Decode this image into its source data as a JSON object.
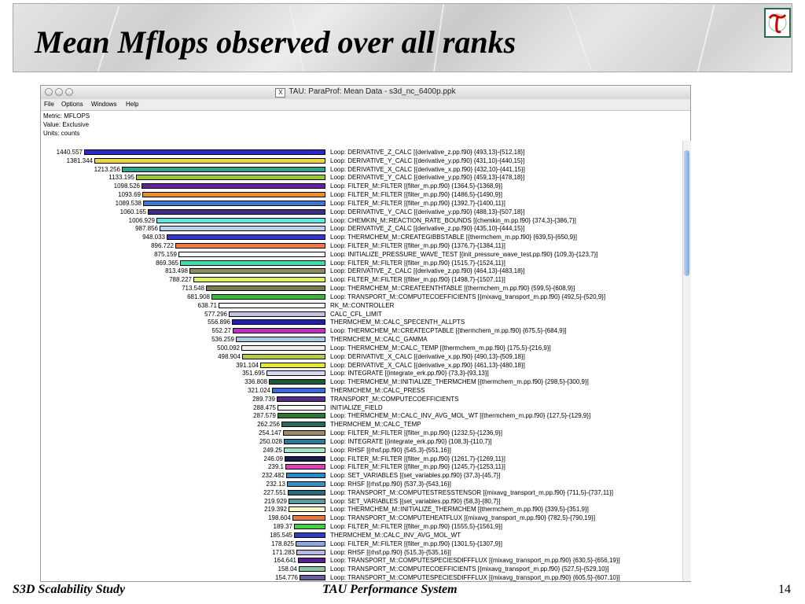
{
  "slide": {
    "title": "Mean Mflops observed over all ranks",
    "footer_left": "S3D Scalability Study",
    "footer_center": "TAU Performance System",
    "page_number": "14"
  },
  "colors": {
    "title": "#000000",
    "logo_accent": "#cc0000",
    "logo_border": "#2c6a45"
  },
  "window": {
    "title": "TAU: ParaProf: Mean Data - s3d_nc_6400p.ppk",
    "menu": [
      "File",
      "Options",
      "Windows",
      "Help"
    ],
    "meta": {
      "metric": "Metric: MFLOPS",
      "value": "Value: Exclusive",
      "units": "Units: counts"
    }
  },
  "chart_data": {
    "type": "bar",
    "orientation": "horizontal",
    "max_value": 1440.557,
    "rows": [
      {
        "value": 1440.557,
        "label": "Loop: DERIVATIVE_Z_CALC [{derivative_z.pp.f90} {493,13}-{512,18}]",
        "color": "#2b27c8"
      },
      {
        "value": 1381.344,
        "label": "Loop: DERIVATIVE_Y_CALC [{derivative_y.pp.f90} {431,10}-{440,15}]",
        "color": "#f0d63c"
      },
      {
        "value": 1213.256,
        "label": "Loop: DERIVATIVE_X_CALC [{derivative_x.pp.f90} {432,10}-{441,15}]",
        "color": "#35a08a"
      },
      {
        "value": 1133.195,
        "label": "Loop: DERIVATIVE_Y_CALC [{derivative_y.pp.f90} {459,13}-{478,18}]",
        "color": "#9ec536"
      },
      {
        "value": 1098.526,
        "label": "Loop: FILTER_M::FILTER [{filter_m.pp.f90} {1364,5}-{1368,9}]",
        "color": "#6a1e9a"
      },
      {
        "value": 1093.69,
        "label": "Loop: FILTER_M::FILTER [{filter_m.pp.f90} {1486,5}-{1490,9}]",
        "color": "#e8902c"
      },
      {
        "value": 1089.538,
        "label": "Loop: FILTER_M::FILTER [{filter_m.pp.f90} {1392,7}-{1400,11}]",
        "color": "#3a78d8"
      },
      {
        "value": 1060.165,
        "label": "Loop: DERIVATIVE_Y_CALC [{derivative_y.pp.f90} {488,13}-{507,18}]",
        "color": "#3a2f8a"
      },
      {
        "value": 1006.929,
        "label": "Loop: CHEMKIN_M::REACTION_RATE_BOUNDS [{chemkin_m.pp.f90} {374,3}-{386,7}]",
        "color": "#5ee6e6"
      },
      {
        "value": 987.856,
        "label": "Loop: DERIVATIVE_Z_CALC [{derivative_z.pp.f90} {435,10}-{444,15}]",
        "color": "#b8d4ec"
      },
      {
        "value": 948.033,
        "label": "Loop: THERMCHEM_M::CREATEGIBBSTABLE [{thermchem_m.pp.f90} {639,5}-{650,9}]",
        "color": "#3636d6"
      },
      {
        "value": 896.722,
        "label": "Loop: FILTER_M::FILTER [{filter_m.pp.f90} {1376,7}-{1384,11}]",
        "color": "#ee7a4a"
      },
      {
        "value": 875.159,
        "label": "Loop: INITIALIZE_PRESSURE_WAVE_TEST [{init_pressure_wave_test.pp.f90} {109,3}-{123,7}]",
        "color": "#ffffff"
      },
      {
        "value": 869.365,
        "label": "Loop: FILTER_M::FILTER [{filter_m.pp.f90} {1515,7}-{1524,11}]",
        "color": "#38e0b0"
      },
      {
        "value": 813.498,
        "label": "Loop: DERIVATIVE_Z_CALC [{derivative_z.pp.f90} {464,13}-{483,18}]",
        "color": "#8e8e5a"
      },
      {
        "value": 788.227,
        "label": "Loop: FILTER_M::FILTER [{filter_m.pp.f90} {1498,7}-{1507,11}]",
        "color": "#e0f060"
      },
      {
        "value": 713.548,
        "label": "Loop: THERMCHEM_M::CREATEENTHTABLE [{thermchem_m.pp.f90} {599,5}-{608,9}]",
        "color": "#7a7a4a"
      },
      {
        "value": 681.908,
        "label": "Loop: TRANSPORT_M::COMPUTECOEFFICIENTS [{mixavg_transport_m.pp.f90} {492,5}-{520,9}]",
        "color": "#38b838"
      },
      {
        "value": 638.71,
        "label": "RK_M::CONTROLLER",
        "color": "#ffffff"
      },
      {
        "value": 577.296,
        "label": "CALC_CFL_LIMIT",
        "color": "#c2c2e2"
      },
      {
        "value": 556.896,
        "label": "THERMCHEM_M::CALC_SPECENTH_ALLPTS",
        "color": "#2020b0"
      },
      {
        "value": 552.27,
        "label": "Loop: THERMCHEM_M::CREATECPTABLE [{thermchem_m.pp.f90} {675,5}-{684,9}]",
        "color": "#c030c0"
      },
      {
        "value": 536.259,
        "label": "THERMCHEM_M::CALC_GAMMA",
        "color": "#a8cce8"
      },
      {
        "value": 500.092,
        "label": "Loop: THERMCHEM_M::CALC_TEMP [{thermchem_m.pp.f90} {175,5}-{216,9}]",
        "color": "#f0f0f0"
      },
      {
        "value": 498.904,
        "label": "Loop: DERIVATIVE_X_CALC [{derivative_x.pp.f90} {490,13}-{509,18}]",
        "color": "#b8c848"
      },
      {
        "value": 391.104,
        "label": "Loop: DERIVATIVE_X_CALC [{derivative_x.pp.f90} {461,13}-{480,18}]",
        "color": "#e8e830"
      },
      {
        "value": 351.695,
        "label": "Loop: INTEGRATE [{integrate_erk.pp.f90} {73,3}-{93,13}]",
        "color": "#d8d8f0"
      },
      {
        "value": 336.808,
        "label": "Loop: THERMCHEM_M::INITIALIZE_THERMCHEM [{thermchem_m.pp.f90} {298,5}-{300,9}]",
        "color": "#1e5a3a"
      },
      {
        "value": 321.024,
        "label": "THERMCHEM_M::CALC_PRESS",
        "color": "#3a6ae0"
      },
      {
        "value": 289.739,
        "label": "TRANSPORT_M::COMPUTECOEFFICIENTS",
        "color": "#5a2a8a"
      },
      {
        "value": 288.475,
        "label": "INITIALIZE_FIELD",
        "color": "#ffffff"
      },
      {
        "value": 287.579,
        "label": "Loop: THERMCHEM_M::CALC_INV_AVG_MOL_WT [{thermchem_m.pp.f90} {127,5}-{129,9}]",
        "color": "#2a7a2a"
      },
      {
        "value": 262.256,
        "label": "THERMCHEM_M::CALC_TEMP",
        "color": "#2a6a5a"
      },
      {
        "value": 254.147,
        "label": "Loop: FILTER_M::FILTER [{filter_m.pp.f90} {1232,5}-{1236,9}]",
        "color": "#9a8a6a"
      },
      {
        "value": 250.028,
        "label": "Loop: INTEGRATE [{integrate_erk.pp.f90} {108,3}-{110,7}]",
        "color": "#2a7a9a"
      },
      {
        "value": 249.25,
        "label": "Loop: RHSF [{rhsf.pp.f90} {545,3}-{551,16}]",
        "color": "#9ae8c8"
      },
      {
        "value": 246.09,
        "label": "Loop: FILTER_M::FILTER [{filter_m.pp.f90} {1261,7}-{1269,11}]",
        "color": "#1a1a4a"
      },
      {
        "value": 239.1,
        "label": "Loop: FILTER_M::FILTER [{filter_m.pp.f90} {1245,7}-{1253,11}]",
        "color": "#e040b0"
      },
      {
        "value": 232.482,
        "label": "Loop: SET_VARIABLES [{set_variables.pp.f90} {37,3}-{45,7}]",
        "color": "#2a8ac8"
      },
      {
        "value": 232.13,
        "label": "Loop: RHSF [{rhsf.pp.f90} {537,3}-{543,16}]",
        "color": "#3a90c0"
      },
      {
        "value": 227.551,
        "label": "Loop: TRANSPORT_M::COMPUTESTRESSTENSOR [{mixavg_transport_m.pp.f90} {711,5}-{737,11}]",
        "color": "#2a6a7a"
      },
      {
        "value": 219.929,
        "label": "Loop: SET_VARIABLES [{set_variables.pp.f90} {58,3}-{80,7}]",
        "color": "#5a9a9a"
      },
      {
        "value": 219.392,
        "label": "Loop: THERMCHEM_M::INITIALIZE_THERMCHEM [{thermchem_m.pp.f90} {339,5}-{351,9}]",
        "color": "#f8f8c0"
      },
      {
        "value": 198.604,
        "label": "Loop: TRANSPORT_M::COMPUTEHEATFLUX [{mixavg_transport_m.pp.f90} {782,5}-{790,19}]",
        "color": "#e87a3a"
      },
      {
        "value": 189.37,
        "label": "Loop: FILTER_M::FILTER [{filter_m.pp.f90} {1555,5}-{1561,9}]",
        "color": "#40d040"
      },
      {
        "value": 185.545,
        "label": "THERMCHEM_M::CALC_INV_AVG_MOL_WT",
        "color": "#2a40c0"
      },
      {
        "value": 178.825,
        "label": "Loop: FILTER_M::FILTER [{filter_m.pp.f90} {1301,5}-{1307,9}]",
        "color": "#8aa8e8"
      },
      {
        "value": 171.283,
        "label": "Loop: RHSF [{rhsf.pp.f90} {515,3}-{535,16}]",
        "color": "#b8b8e0"
      },
      {
        "value": 164.641,
        "label": "Loop: TRANSPORT_M::COMPUTESPECIESDIFFFLUX [{mixavg_transport_m.pp.f90} {630,5}-{656,19}]",
        "color": "#5a2090"
      },
      {
        "value": 158.04,
        "label": "Loop: TRANSPORT_M::COMPUTECOEFFICIENTS [{mixavg_transport_m.pp.f90} {527,5}-{529,10}]",
        "color": "#88c8a8"
      },
      {
        "value": 154.776,
        "label": "Loop: TRANSPORT_M::COMPUTESPECIESDIFFFLUX [{mixavg_transport_m.pp.f90} {605,5}-{607,10}]",
        "color": "#6a5aa0"
      }
    ]
  }
}
